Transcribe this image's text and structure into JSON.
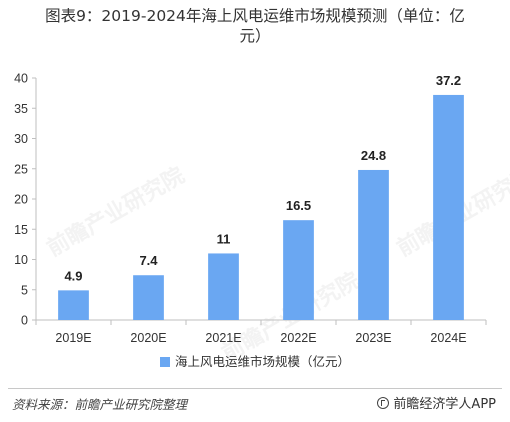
{
  "title_line1": "图表9：2019-2024年海上风电运维市场规模预测（单位：亿",
  "title_line2": "元）",
  "chart_data": {
    "type": "bar",
    "categories": [
      "2019E",
      "2020E",
      "2021E",
      "2022E",
      "2023E",
      "2024E"
    ],
    "series": [
      {
        "name": "海上风电运维市场规模（亿元）",
        "values": [
          4.9,
          7.4,
          11,
          16.5,
          24.8,
          37.2
        ],
        "labels": [
          "4.9",
          "7.4",
          "11",
          "16.5",
          "24.8",
          "37.2"
        ],
        "color": "#6aa7f2"
      }
    ],
    "ylim": [
      0,
      40
    ],
    "yticks": [
      0,
      5,
      10,
      15,
      20,
      25,
      30,
      35,
      40
    ],
    "grid": false,
    "legend_position": "bottom"
  },
  "watermark_text": "前瞻产业研究院",
  "source": "资料来源：前瞻产业研究院整理",
  "brand": "前瞻经济学人APP"
}
